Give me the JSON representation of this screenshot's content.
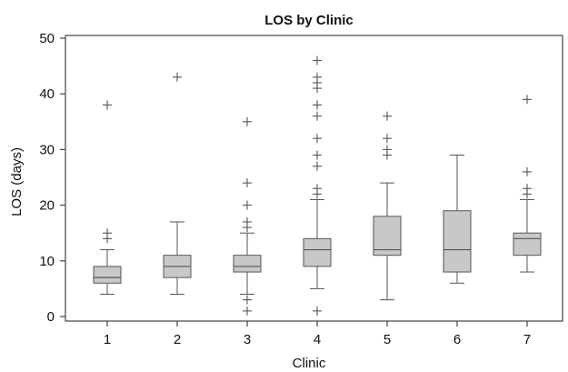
{
  "chart_data": {
    "type": "boxplot",
    "title": "LOS by Clinic",
    "xlabel": "Clinic",
    "ylabel": "LOS (days)",
    "ylim": [
      0,
      50
    ],
    "yticks": [
      0,
      10,
      20,
      30,
      40,
      50
    ],
    "categories": [
      "1",
      "2",
      "3",
      "4",
      "5",
      "6",
      "7"
    ],
    "grid": false,
    "colors": {
      "box_fill": "#c8c8c8",
      "stroke": "#555555",
      "outlier": "#555555"
    },
    "boxes": [
      {
        "category": "1",
        "whisker_low": 4,
        "q1": 6,
        "median": 7,
        "q3": 9,
        "whisker_high": 12,
        "outliers": [
          14,
          15,
          38
        ]
      },
      {
        "category": "2",
        "whisker_low": 4,
        "q1": 7,
        "median": 9,
        "q3": 11,
        "whisker_high": 17,
        "outliers": [
          43
        ]
      },
      {
        "category": "3",
        "whisker_low": 4,
        "q1": 8,
        "median": 9,
        "q3": 11,
        "whisker_high": 15,
        "outliers": [
          1,
          3,
          16,
          17,
          20,
          24,
          35
        ]
      },
      {
        "category": "4",
        "whisker_low": 5,
        "q1": 9,
        "median": 12,
        "q3": 14,
        "whisker_high": 21,
        "outliers": [
          1,
          22,
          23,
          27,
          29,
          32,
          36,
          38,
          41,
          42,
          43,
          46
        ]
      },
      {
        "category": "5",
        "whisker_low": 3,
        "q1": 11,
        "median": 12,
        "q3": 18,
        "whisker_high": 24,
        "outliers": [
          29,
          30,
          32,
          36
        ]
      },
      {
        "category": "6",
        "whisker_low": 6,
        "q1": 8,
        "median": 12,
        "q3": 19,
        "whisker_high": 29,
        "outliers": []
      },
      {
        "category": "7",
        "whisker_low": 8,
        "q1": 11,
        "median": 14,
        "q3": 15,
        "whisker_high": 21,
        "outliers": [
          22,
          23,
          26,
          39
        ]
      }
    ]
  }
}
